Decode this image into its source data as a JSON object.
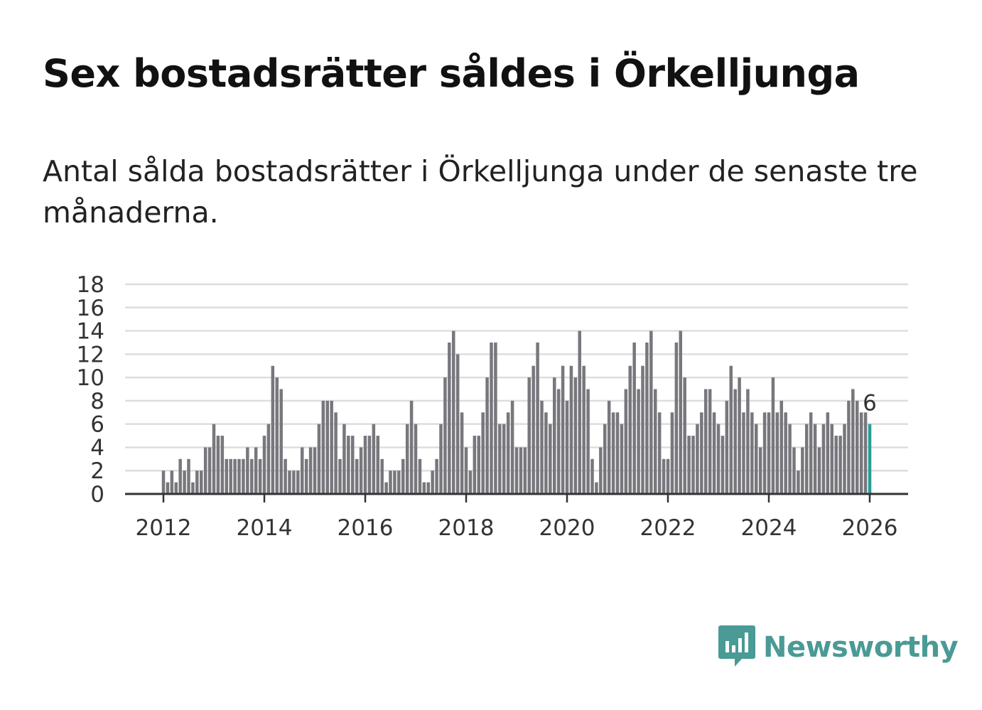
{
  "header": {
    "title": "Sex bostadsrätter såldes i Örkelljunga",
    "subtitle": "Antal sålda bostadsrätter i Örkelljunga under de senaste tre månaderna."
  },
  "brand": {
    "name": "Newsworthy",
    "color": "#4a9a95",
    "logo_icon": "newsworthy-bar-chart-icon"
  },
  "chart_data": {
    "type": "bar",
    "title": "Sex bostadsrätter såldes i Örkelljunga",
    "subtitle": "Antal sålda bostadsrätter i Örkelljunga under de senaste tre månaderna.",
    "xlabel": "",
    "ylabel": "",
    "ylim": [
      0,
      18
    ],
    "y_ticks": [
      0,
      2,
      4,
      6,
      8,
      10,
      12,
      14,
      16,
      18
    ],
    "x_tick_labels": [
      "2012",
      "2014",
      "2016",
      "2018",
      "2020",
      "2022",
      "2024",
      "2026"
    ],
    "grid": true,
    "bar_color": "#78777d",
    "highlight_color": "#2a9d97",
    "start": "2012-01",
    "end": "2026-01",
    "frequency": "monthly",
    "last_value_label": "6",
    "values": [
      2,
      1,
      2,
      1,
      3,
      2,
      3,
      1,
      2,
      2,
      4,
      4,
      6,
      5,
      5,
      3,
      3,
      3,
      3,
      3,
      4,
      3,
      4,
      3,
      5,
      6,
      11,
      10,
      9,
      3,
      2,
      2,
      2,
      4,
      3,
      4,
      4,
      6,
      8,
      8,
      8,
      7,
      3,
      6,
      5,
      5,
      3,
      4,
      5,
      5,
      6,
      5,
      3,
      1,
      2,
      2,
      2,
      3,
      6,
      8,
      6,
      3,
      1,
      1,
      2,
      3,
      6,
      10,
      13,
      14,
      12,
      7,
      4,
      2,
      5,
      5,
      7,
      10,
      13,
      13,
      6,
      6,
      7,
      8,
      4,
      4,
      4,
      10,
      11,
      13,
      8,
      7,
      6,
      10,
      9,
      11,
      8,
      11,
      10,
      14,
      11,
      9,
      3,
      1,
      4,
      6,
      8,
      7,
      7,
      6,
      9,
      11,
      13,
      9,
      11,
      13,
      14,
      9,
      7,
      3,
      3,
      7,
      13,
      14,
      10,
      5,
      5,
      6,
      7,
      9,
      9,
      7,
      6,
      5,
      8,
      11,
      9,
      10,
      7,
      9,
      7,
      6,
      4,
      7,
      7,
      10,
      7,
      8,
      7,
      6,
      4,
      2,
      4,
      6,
      7,
      6,
      4,
      6,
      7,
      6,
      5,
      5,
      6,
      8,
      9,
      8,
      7,
      7,
      6
    ]
  }
}
